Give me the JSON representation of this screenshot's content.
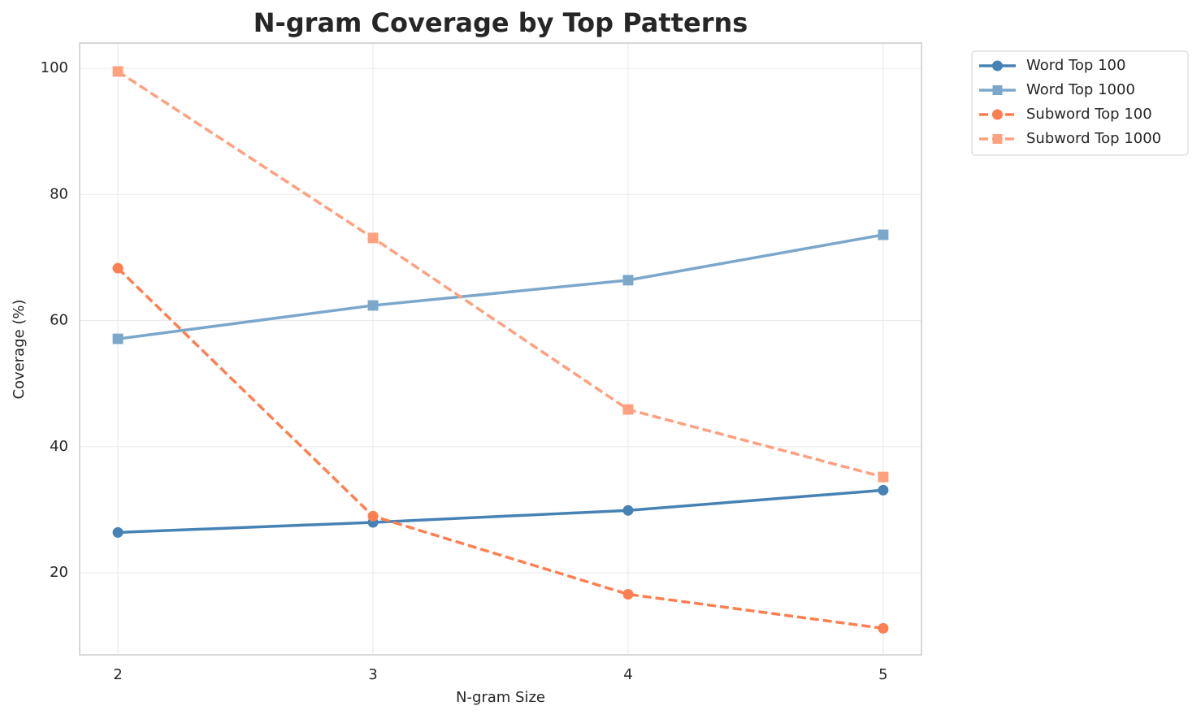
{
  "chart_data": {
    "type": "line",
    "title": "N-gram Coverage by Top Patterns",
    "xlabel": "N-gram Size",
    "ylabel": "Coverage (%)",
    "x": [
      2,
      3,
      4,
      5
    ],
    "series": [
      {
        "name": "Word Top 100",
        "color": "#4682b4",
        "marker": "circle",
        "linestyle": "solid",
        "values": [
          26.4,
          28.0,
          29.9,
          33.1
        ]
      },
      {
        "name": "Word Top 1000",
        "color": "#7ba7cb",
        "marker": "square",
        "linestyle": "solid",
        "values": [
          57.1,
          62.4,
          66.4,
          73.6
        ]
      },
      {
        "name": "Subword Top 100",
        "color": "#ff7f50",
        "marker": "circle",
        "linestyle": "dashed",
        "values": [
          68.3,
          29.0,
          16.6,
          11.2
        ]
      },
      {
        "name": "Subword Top 1000",
        "color": "#ffa07f",
        "marker": "square",
        "linestyle": "dashed",
        "values": [
          99.5,
          73.1,
          45.9,
          35.2
        ]
      }
    ],
    "xlim": [
      1.85,
      5.15
    ],
    "xticks": [
      2,
      3,
      4,
      5
    ],
    "ylim": [
      7,
      104
    ],
    "yticks": [
      20,
      40,
      60,
      80,
      100
    ],
    "grid": true,
    "legend": "outside-upper-right"
  }
}
